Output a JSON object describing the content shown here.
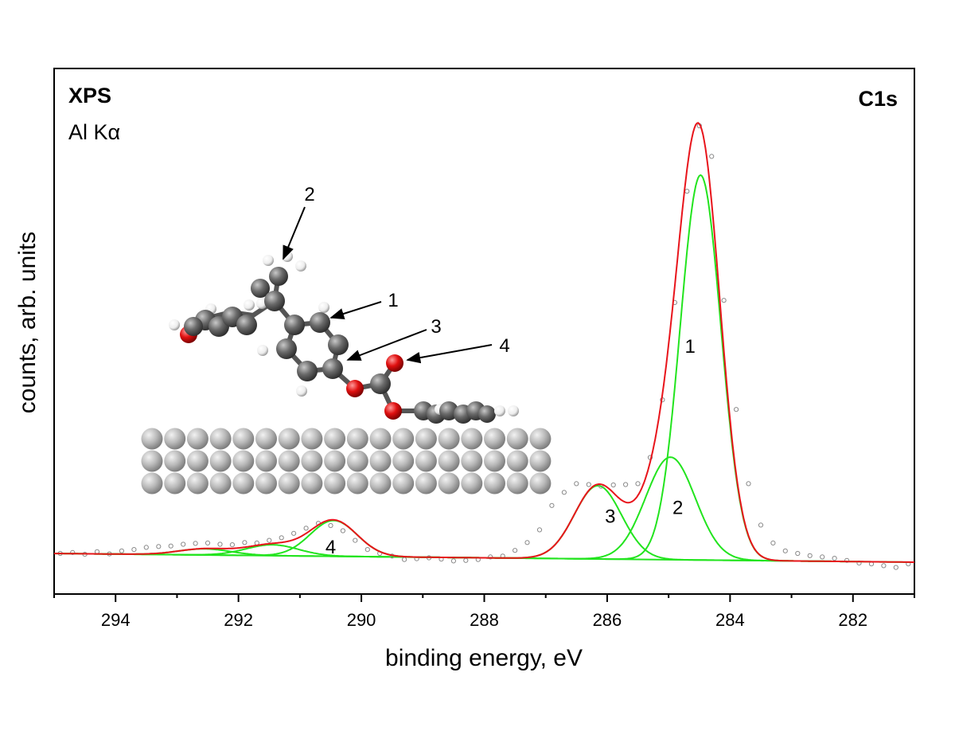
{
  "chart_data": {
    "type": "line",
    "title_left": "XPS",
    "subtitle_left": "Al Kα",
    "title_right": "C1s",
    "xlabel": "binding energy, eV",
    "ylabel": "counts, arb. units",
    "xlim": [
      295,
      281
    ],
    "x_reversed": true,
    "xticks": [
      294,
      292,
      290,
      288,
      286,
      284,
      282
    ],
    "ylim": [
      0,
      1.1
    ],
    "y_ticks_shown": false,
    "grid": false,
    "colors": {
      "envelope": "#e8141b",
      "components": "#22e41e",
      "data": "#8a8a8a",
      "molecule_c": "#5f5f5f",
      "molecule_o": "#e01010",
      "molecule_h": "#ffffff",
      "surface": "#b4b4b4"
    },
    "baseline": {
      "x": [
        295,
        281
      ],
      "y": [
        0.02,
        0.0
      ]
    },
    "components": [
      {
        "label": "1",
        "center": 284.48,
        "amplitude": 0.882,
        "fwhm": 0.78
      },
      {
        "label": "2",
        "center": 284.97,
        "amplitude": 0.235,
        "fwhm": 0.95
      },
      {
        "label": "3",
        "center": 286.15,
        "amplitude": 0.168,
        "fwhm": 0.9
      },
      {
        "label": "4",
        "center": 290.45,
        "amplitude": 0.082,
        "fwhm": 0.9
      },
      {
        "label": "",
        "center": 291.45,
        "amplitude": 0.025,
        "fwhm": 1.0
      },
      {
        "label": "",
        "center": 292.55,
        "amplitude": 0.014,
        "fwhm": 1.0
      }
    ],
    "data_points": {
      "x": [
        294.9,
        294.7,
        294.5,
        294.3,
        294.1,
        293.9,
        293.7,
        293.5,
        293.3,
        293.1,
        292.9,
        292.7,
        292.5,
        292.3,
        292.1,
        291.9,
        291.7,
        291.5,
        291.3,
        291.1,
        290.9,
        290.7,
        290.5,
        290.3,
        290.1,
        289.9,
        289.7,
        289.5,
        289.3,
        289.1,
        288.9,
        288.7,
        288.5,
        288.3,
        288.1,
        287.9,
        287.7,
        287.5,
        287.3,
        287.1,
        286.9,
        286.7,
        286.5,
        286.3,
        286.1,
        285.9,
        285.7,
        285.5,
        285.3,
        285.1,
        284.9,
        284.7,
        284.5,
        284.3,
        284.1,
        283.9,
        283.7,
        283.5,
        283.3,
        283.1,
        282.9,
        282.7,
        282.5,
        282.3,
        282.1,
        281.9,
        281.7,
        281.5,
        281.3,
        281.1
      ],
      "y": [
        0.02,
        0.022,
        0.018,
        0.024,
        0.019,
        0.026,
        0.029,
        0.034,
        0.036,
        0.037,
        0.041,
        0.043,
        0.044,
        0.041,
        0.04,
        0.045,
        0.044,
        0.05,
        0.056,
        0.066,
        0.078,
        0.089,
        0.084,
        0.072,
        0.05,
        0.029,
        0.02,
        0.014,
        0.006,
        0.008,
        0.01,
        0.007,
        0.003,
        0.004,
        0.006,
        0.012,
        0.014,
        0.027,
        0.045,
        0.074,
        0.13,
        0.16,
        0.18,
        0.178,
        0.174,
        0.177,
        0.178,
        0.18,
        0.24,
        0.372,
        0.595,
        0.85,
        1.0,
        0.93,
        0.6,
        0.35,
        0.18,
        0.085,
        0.044,
        0.026,
        0.02,
        0.015,
        0.012,
        0.009,
        0.004,
        -0.002,
        -0.004,
        -0.008,
        -0.012,
        -0.004
      ]
    },
    "annotations": [
      {
        "text": "1",
        "x": 284.65,
        "y": 0.48
      },
      {
        "text": "2",
        "x": 284.85,
        "y": 0.11
      },
      {
        "text": "3",
        "x": 285.95,
        "y": 0.09
      },
      {
        "text": "4",
        "x": 290.5,
        "y": 0.02
      }
    ]
  },
  "inset": {
    "callout_labels": [
      "2",
      "1",
      "3",
      "4"
    ],
    "surface_rows": 3,
    "surface_cols": 18
  }
}
